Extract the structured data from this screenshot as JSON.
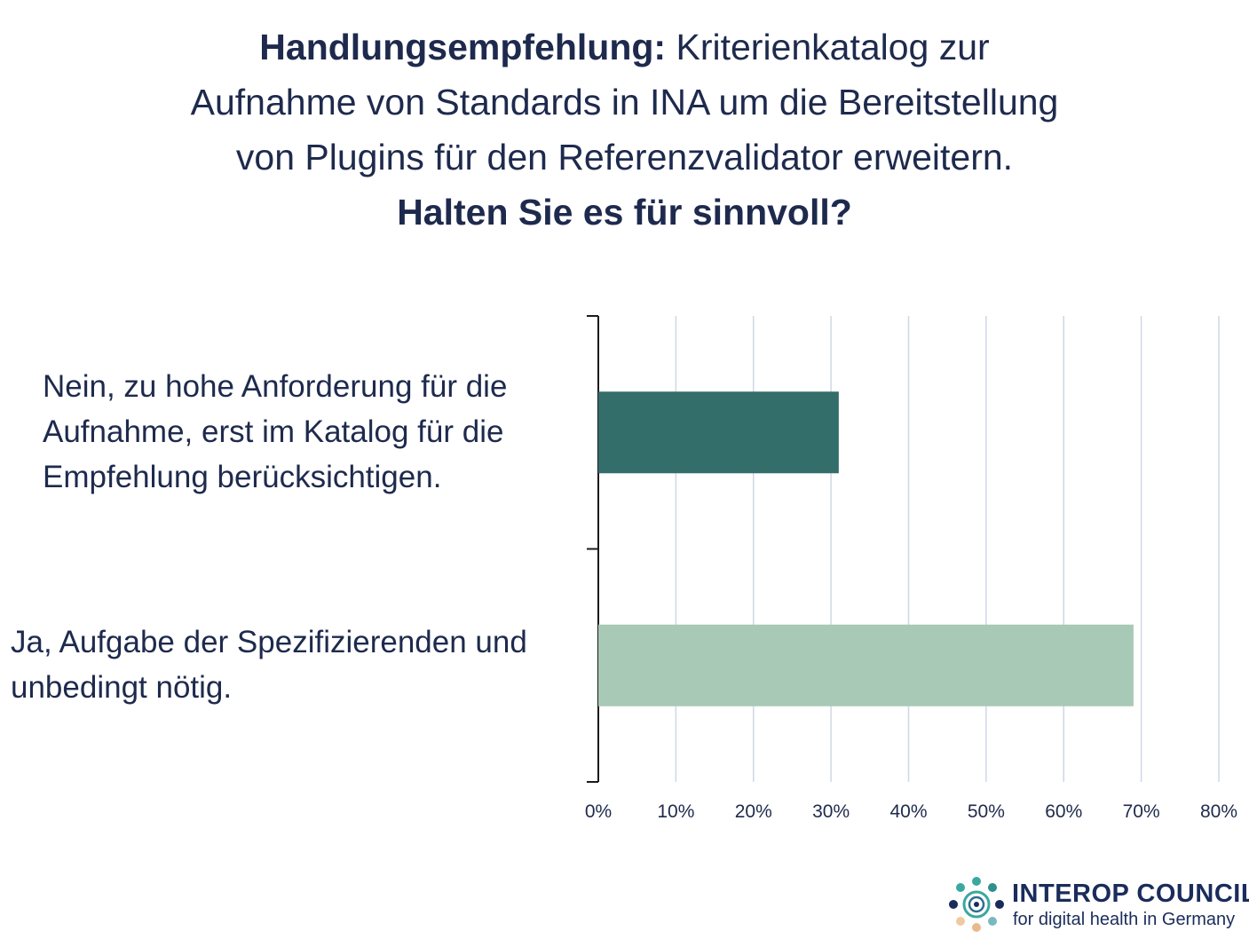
{
  "title": {
    "line1_bold": "Handlungsempfehlung:",
    "line1_rest": " Kriterienkatalog zur",
    "line2": "Aufnahme von Standards in INA um die Bereitstellung",
    "line3": "von Plugins für den Referenzvalidator erweitern.",
    "line4_bold": "Halten Sie es für sinnvoll?"
  },
  "chart_data": {
    "type": "bar",
    "orientation": "horizontal",
    "categories": [
      "Nein, zu hohe Anforderung für die Aufnahme, erst im Katalog für die Empfehlung berücksichtigen.",
      "Ja, Aufgabe der Spezifizierenden und unbedingt nötig."
    ],
    "values": [
      31,
      69
    ],
    "colors": [
      "#336e6b",
      "#a7c9b5"
    ],
    "xlim": [
      0,
      80
    ],
    "xticks": [
      "0%",
      "10%",
      "20%",
      "30%",
      "40%",
      "50%",
      "60%",
      "70%",
      "80%"
    ],
    "grid": true,
    "gridColor": "#cfd6e6"
  },
  "logo": {
    "name": "INTEROP COUNCIL",
    "tagline": "for digital health in Germany"
  }
}
